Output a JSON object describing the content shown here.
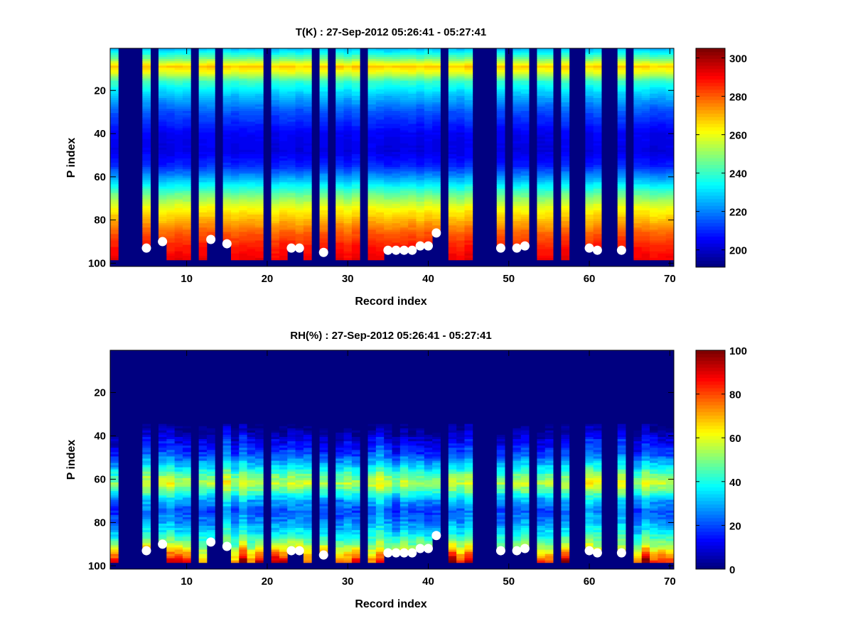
{
  "chart_data": [
    {
      "type": "heatmap",
      "title": "T(K) : 27-Sep-2012 05:26:41 - 05:27:41",
      "xlabel": "Record index",
      "ylabel": "P index",
      "xlim": [
        0.5,
        70.5
      ],
      "ylim": [
        0.5,
        101.5
      ],
      "y_reversed": true,
      "xticks": [
        10,
        20,
        30,
        40,
        50,
        60,
        70
      ],
      "yticks": [
        20,
        40,
        60,
        80,
        100
      ],
      "colormap": "jet",
      "clim": [
        191,
        305
      ],
      "colorbar_ticks": [
        200,
        220,
        240,
        260,
        280,
        300
      ],
      "mean_profile": {
        "p": [
          1,
          5,
          9,
          12,
          16,
          22,
          30,
          40,
          48,
          55,
          62,
          68,
          74,
          80,
          86,
          92,
          98
        ],
        "value": [
          228,
          245,
          268,
          258,
          240,
          228,
          215,
          205,
          203,
          210,
          228,
          245,
          260,
          270,
          280,
          287,
          292
        ]
      },
      "variation": 5
    },
    {
      "type": "heatmap",
      "title": "RH(%) : 27-Sep-2012 05:26:41 - 05:27:41",
      "xlabel": "Record index",
      "ylabel": "P index",
      "xlim": [
        0.5,
        70.5
      ],
      "ylim": [
        0.5,
        101.5
      ],
      "y_reversed": true,
      "xticks": [
        10,
        20,
        30,
        40,
        50,
        60,
        70
      ],
      "yticks": [
        20,
        40,
        60,
        80,
        100
      ],
      "colormap": "jet",
      "clim": [
        0,
        100
      ],
      "colorbar_ticks": [
        0,
        20,
        40,
        60,
        80,
        100
      ],
      "mean_profile": {
        "p": [
          1,
          35,
          38,
          42,
          48,
          54,
          58,
          62,
          66,
          70,
          75,
          80,
          85,
          90,
          94,
          98
        ],
        "value": [
          0,
          0,
          5,
          12,
          20,
          35,
          48,
          58,
          45,
          30,
          22,
          28,
          38,
          50,
          65,
          80
        ]
      },
      "variation": 14
    }
  ],
  "records": {
    "count": 70,
    "last_valid_p": 98,
    "missing": [
      2,
      3,
      4,
      6,
      11,
      14,
      20,
      26,
      28,
      32,
      42,
      46,
      47,
      48,
      50,
      53,
      56,
      58,
      59,
      62,
      63,
      65
    ],
    "markers": [
      {
        "record": 5,
        "p": 93
      },
      {
        "record": 7,
        "p": 90
      },
      {
        "record": 13,
        "p": 89
      },
      {
        "record": 15,
        "p": 91
      },
      {
        "record": 23,
        "p": 93
      },
      {
        "record": 24,
        "p": 93
      },
      {
        "record": 27,
        "p": 95
      },
      {
        "record": 35,
        "p": 94
      },
      {
        "record": 36,
        "p": 94
      },
      {
        "record": 37,
        "p": 94
      },
      {
        "record": 38,
        "p": 94
      },
      {
        "record": 39,
        "p": 92
      },
      {
        "record": 40,
        "p": 92
      },
      {
        "record": 41,
        "p": 86
      },
      {
        "record": 49,
        "p": 93
      },
      {
        "record": 51,
        "p": 93
      },
      {
        "record": 52,
        "p": 92
      },
      {
        "record": 60,
        "p": 93
      },
      {
        "record": 61,
        "p": 94
      },
      {
        "record": 64,
        "p": 94
      }
    ],
    "marker_color": "#ffffff",
    "missing_color": "#000080"
  }
}
